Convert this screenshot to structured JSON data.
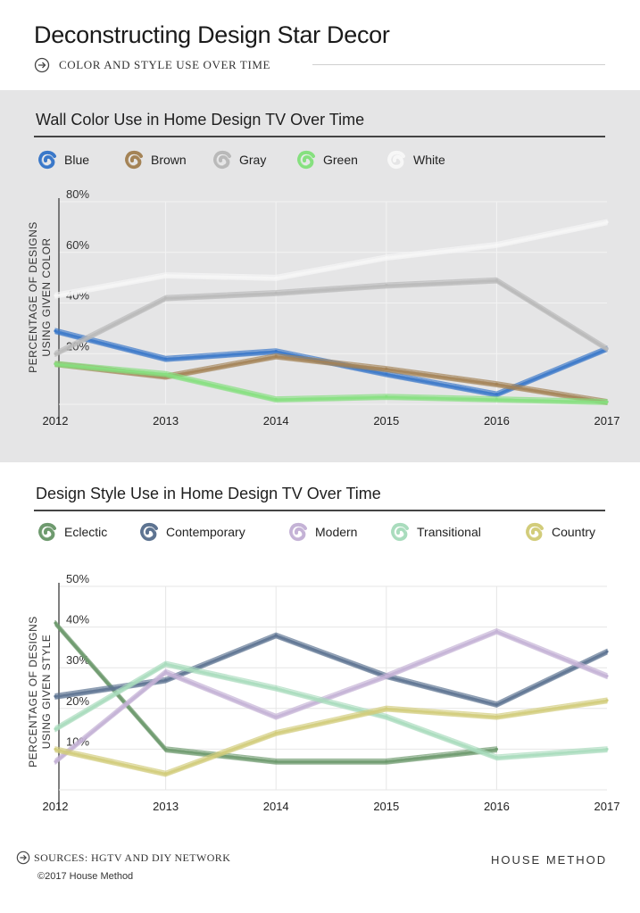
{
  "header": {
    "title": "Deconstructing Design Star Decor",
    "subtitle": "COLOR AND STYLE USE OVER TIME",
    "subtitle_icon": "arrow-circle-icon"
  },
  "chart_data": [
    {
      "type": "line",
      "title": "Wall Color Use in Home Design TV Over Time",
      "ylabel": "PERCENTAGE OF DESIGNS USING GIVEN COLOR",
      "xlabel": "",
      "x": [
        "2012",
        "2013",
        "2014",
        "2015",
        "2016",
        "2017"
      ],
      "ylim": [
        0,
        80
      ],
      "yticks": [
        "20%",
        "40%",
        "60%",
        "80%"
      ],
      "ytick_values": [
        20,
        40,
        60,
        80
      ],
      "grid": true,
      "series": [
        {
          "name": "Blue",
          "color": "#3a78c9",
          "values": [
            29,
            18,
            21,
            12,
            4,
            22
          ]
        },
        {
          "name": "Brown",
          "color": "#a48356",
          "values": [
            16,
            11,
            19,
            14,
            8,
            1
          ]
        },
        {
          "name": "Gray",
          "color": "#b9b9b9",
          "values": [
            20,
            42,
            44,
            47,
            49,
            22
          ]
        },
        {
          "name": "Green",
          "color": "#86e07f",
          "values": [
            16,
            12,
            2,
            3,
            2,
            1
          ]
        },
        {
          "name": "White",
          "color": "#f7f7f7",
          "values": [
            43,
            51,
            50,
            58,
            63,
            72
          ]
        }
      ]
    },
    {
      "type": "line",
      "title": "Design Style Use in Home Design TV Over Time",
      "ylabel": "PERCENTAGE OF DESIGNS USING GIVEN STYLE",
      "xlabel": "",
      "x": [
        "2012",
        "2013",
        "2014",
        "2015",
        "2016",
        "2017"
      ],
      "ylim": [
        0,
        50
      ],
      "yticks": [
        "10%",
        "20%",
        "30%",
        "40%",
        "50%"
      ],
      "ytick_values": [
        10,
        20,
        30,
        40,
        50
      ],
      "grid": true,
      "series": [
        {
          "name": "Eclectic",
          "color": "#6e9a6e",
          "values": [
            41,
            10,
            7,
            7,
            10,
            null
          ]
        },
        {
          "name": "Contemporary",
          "color": "#5d7391",
          "values": [
            23,
            27,
            38,
            28,
            21,
            34
          ]
        },
        {
          "name": "Modern",
          "color": "#c4b2d6",
          "values": [
            7,
            29,
            18,
            28,
            39,
            28
          ]
        },
        {
          "name": "Transitional",
          "color": "#a9dcbd",
          "values": [
            15,
            31,
            25,
            18,
            8,
            10
          ]
        },
        {
          "name": "Country",
          "color": "#d2cc7a",
          "values": [
            10,
            4,
            14,
            20,
            18,
            22
          ]
        }
      ]
    }
  ],
  "footer": {
    "sources": "SOURCES: HGTV AND DIY NETWORK",
    "copyright": "©2017 House Method",
    "brand": "HOUSE METHOD",
    "sources_icon": "arrow-circle-icon"
  }
}
